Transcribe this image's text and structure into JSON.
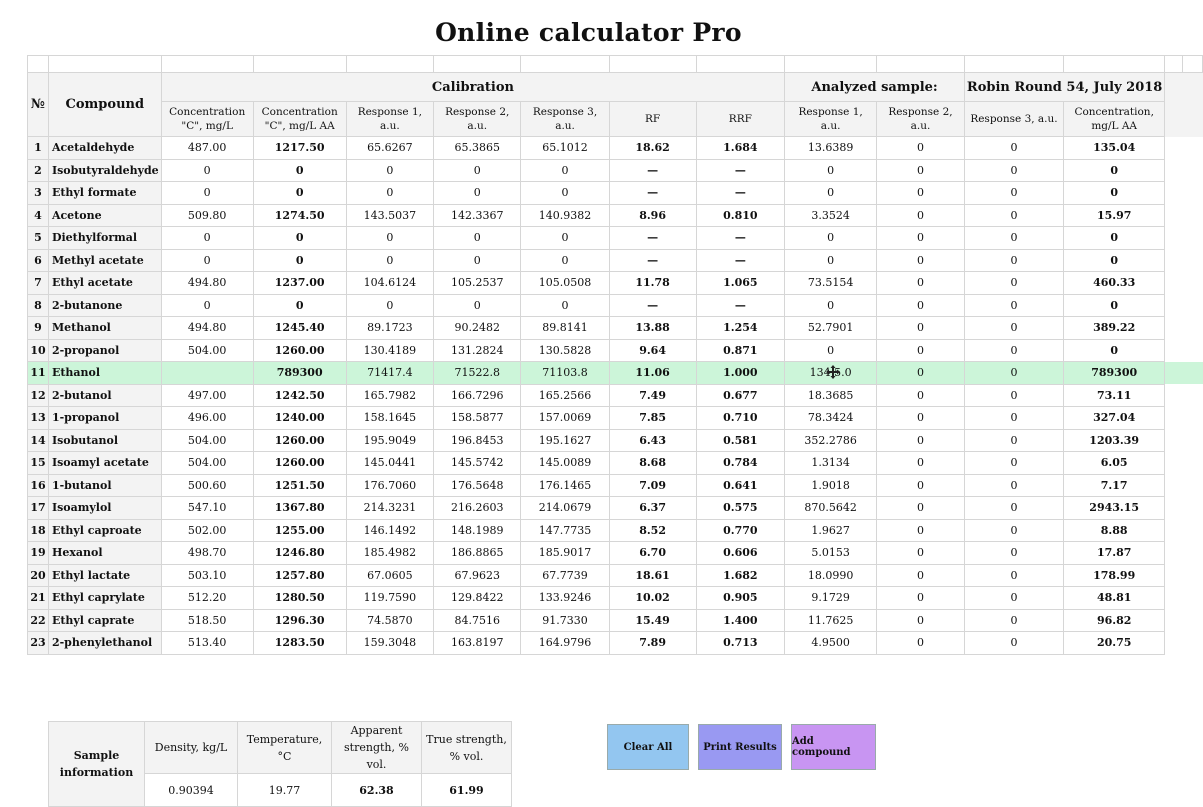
{
  "title": "Online calculator Pro",
  "headers": {
    "no": "№",
    "compound": "Compound",
    "calibration": "Calibration",
    "analyzed": "Analyzed sample:",
    "sample_name": "Robin Round 54, July 2018",
    "conc_c": "Concentration \"C\", mg/L",
    "conc_c_aa": "Concentration \"C\", mg/L AA",
    "resp1": "Response 1, a.u.",
    "resp2": "Response 2, a.u.",
    "resp3": "Response 3, a.u.",
    "rf": "RF",
    "rrf": "RRF",
    "a_resp1": "Response 1, a.u.",
    "a_resp2": "Response 2, a.u.",
    "a_resp3": "Response 3, a.u.",
    "a_conc": "Concentration, mg/L AA"
  },
  "rows": [
    [
      "1",
      "Acetaldehyde",
      "487.00",
      "1217.50",
      "65.6267",
      "65.3865",
      "65.1012",
      "18.62",
      "1.684",
      "13.6389",
      "0",
      "0",
      "135.04"
    ],
    [
      "2",
      "Isobutyraldehyde",
      "0",
      "0",
      "0",
      "0",
      "0",
      "—",
      "—",
      "0",
      "0",
      "0",
      "0"
    ],
    [
      "3",
      "Ethyl formate",
      "0",
      "0",
      "0",
      "0",
      "0",
      "—",
      "—",
      "0",
      "0",
      "0",
      "0"
    ],
    [
      "4",
      "Acetone",
      "509.80",
      "1274.50",
      "143.5037",
      "142.3367",
      "140.9382",
      "8.96",
      "0.810",
      "3.3524",
      "0",
      "0",
      "15.97"
    ],
    [
      "5",
      "Diethylformal",
      "0",
      "0",
      "0",
      "0",
      "0",
      "—",
      "—",
      "0",
      "0",
      "0",
      "0"
    ],
    [
      "6",
      "Methyl acetate",
      "0",
      "0",
      "0",
      "0",
      "0",
      "—",
      "—",
      "0",
      "0",
      "0",
      "0"
    ],
    [
      "7",
      "Ethyl acetate",
      "494.80",
      "1237.00",
      "104.6124",
      "105.2537",
      "105.0508",
      "11.78",
      "1.065",
      "73.5154",
      "0",
      "0",
      "460.33"
    ],
    [
      "8",
      "2-butanone",
      "0",
      "0",
      "0",
      "0",
      "0",
      "—",
      "—",
      "0",
      "0",
      "0",
      "0"
    ],
    [
      "9",
      "Methanol",
      "494.80",
      "1245.40",
      "89.1723",
      "90.2482",
      "89.8141",
      "13.88",
      "1.254",
      "52.7901",
      "0",
      "0",
      "389.22"
    ],
    [
      "10",
      "2-propanol",
      "504.00",
      "1260.00",
      "130.4189",
      "131.2824",
      "130.5828",
      "9.64",
      "0.871",
      "0",
      "0",
      "0",
      "0"
    ],
    [
      "11",
      "Ethanol",
      "",
      "789300",
      "71417.4",
      "71522.8",
      "71103.8",
      "11.06",
      "1.000",
      "134 5.0",
      "0",
      "0",
      "789300"
    ],
    [
      "12",
      "2-butanol",
      "497.00",
      "1242.50",
      "165.7982",
      "166.7296",
      "165.2566",
      "7.49",
      "0.677",
      "18.3685",
      "0",
      "0",
      "73.11"
    ],
    [
      "13",
      "1-propanol",
      "496.00",
      "1240.00",
      "158.1645",
      "158.5877",
      "157.0069",
      "7.85",
      "0.710",
      "78.3424",
      "0",
      "0",
      "327.04"
    ],
    [
      "14",
      "Isobutanol",
      "504.00",
      "1260.00",
      "195.9049",
      "196.8453",
      "195.1627",
      "6.43",
      "0.581",
      "352.2786",
      "0",
      "0",
      "1203.39"
    ],
    [
      "15",
      "Isoamyl acetate",
      "504.00",
      "1260.00",
      "145.0441",
      "145.5742",
      "145.0089",
      "8.68",
      "0.784",
      "1.3134",
      "0",
      "0",
      "6.05"
    ],
    [
      "16",
      "1-butanol",
      "500.60",
      "1251.50",
      "176.7060",
      "176.5648",
      "176.1465",
      "7.09",
      "0.641",
      "1.9018",
      "0",
      "0",
      "7.17"
    ],
    [
      "17",
      "Isoamylol",
      "547.10",
      "1367.80",
      "214.3231",
      "216.2603",
      "214.0679",
      "6.37",
      "0.575",
      "870.5642",
      "0",
      "0",
      "2943.15"
    ],
    [
      "18",
      "Ethyl caproate",
      "502.00",
      "1255.00",
      "146.1492",
      "148.1989",
      "147.7735",
      "8.52",
      "0.770",
      "1.9627",
      "0",
      "0",
      "8.88"
    ],
    [
      "19",
      "Hexanol",
      "498.70",
      "1246.80",
      "185.4982",
      "186.8865",
      "185.9017",
      "6.70",
      "0.606",
      "5.0153",
      "0",
      "0",
      "17.87"
    ],
    [
      "20",
      "Ethyl lactate",
      "503.10",
      "1257.80",
      "67.0605",
      "67.9623",
      "67.7739",
      "18.61",
      "1.682",
      "18.0990",
      "0",
      "0",
      "178.99"
    ],
    [
      "21",
      "Ethyl caprylate",
      "512.20",
      "1280.50",
      "119.7590",
      "129.8422",
      "133.9246",
      "10.02",
      "0.905",
      "9.1729",
      "0",
      "0",
      "48.81"
    ],
    [
      "22",
      "Ethyl caprate",
      "518.50",
      "1296.30",
      "74.5870",
      "84.7516",
      "91.7330",
      "15.49",
      "1.400",
      "11.7625",
      "0",
      "0",
      "96.82"
    ],
    [
      "23",
      "2-phenylethanol",
      "513.40",
      "1283.50",
      "159.3048",
      "163.8197",
      "164.9796",
      "7.89",
      "0.713",
      "4.9500",
      "0",
      "0",
      "20.75"
    ]
  ],
  "sample_info": {
    "label": "Sample information",
    "density_label": "Density, kg/L",
    "temperature_label": "Temperature, °C",
    "apparent_label": "Apparent strength, % vol.",
    "true_label": "True strength, % vol.",
    "density": "0.90394",
    "temperature": "19.77",
    "apparent": "62.38",
    "true": "61.99"
  },
  "buttons": {
    "clear": "Clear All",
    "print": "Print Results",
    "add": "Add compound"
  },
  "colors": {
    "highlight_row": "#ccf5d9",
    "clear_button": "#93c6f0",
    "print_button": "#9999f2",
    "add_button": "#c895f2"
  },
  "highlight_row_index": 10
}
